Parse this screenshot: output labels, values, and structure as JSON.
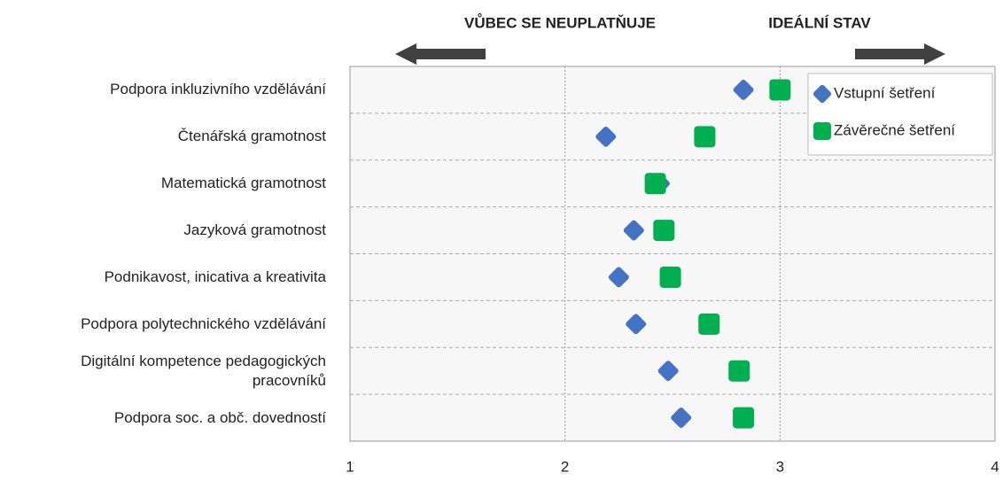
{
  "chart_data": {
    "type": "dot",
    "annotations": [
      "VŮBEC SE NEUPLATŇUJE",
      "IDEÁLNÍ STAV"
    ],
    "categories": [
      "Podpora inkluzivního vzdělávání",
      "Čtenářská gramotnost",
      "Matematická gramotnost",
      "Jazyková gramotnost",
      "Podnikavost, inicativa a kreativita",
      "Podpora polytechnického vzdělávání",
      "Digitální kompetence pedagogických pracovníků",
      "Podpora soc. a obč. dovedností"
    ],
    "series": [
      {
        "name": "Vstupní šetření",
        "color": "#4472c4",
        "marker": "diamond",
        "values": [
          2.83,
          2.19,
          2.44,
          2.32,
          2.25,
          2.33,
          2.48,
          2.54
        ]
      },
      {
        "name": "Závěrečné šetření",
        "color": "#00b050",
        "marker": "square",
        "values": [
          3.0,
          2.65,
          2.42,
          2.46,
          2.49,
          2.67,
          2.81,
          2.83
        ]
      }
    ],
    "xlim": [
      1,
      4
    ],
    "xticks": [
      1,
      2,
      3,
      4
    ],
    "grid": true,
    "legend": "top-right"
  }
}
